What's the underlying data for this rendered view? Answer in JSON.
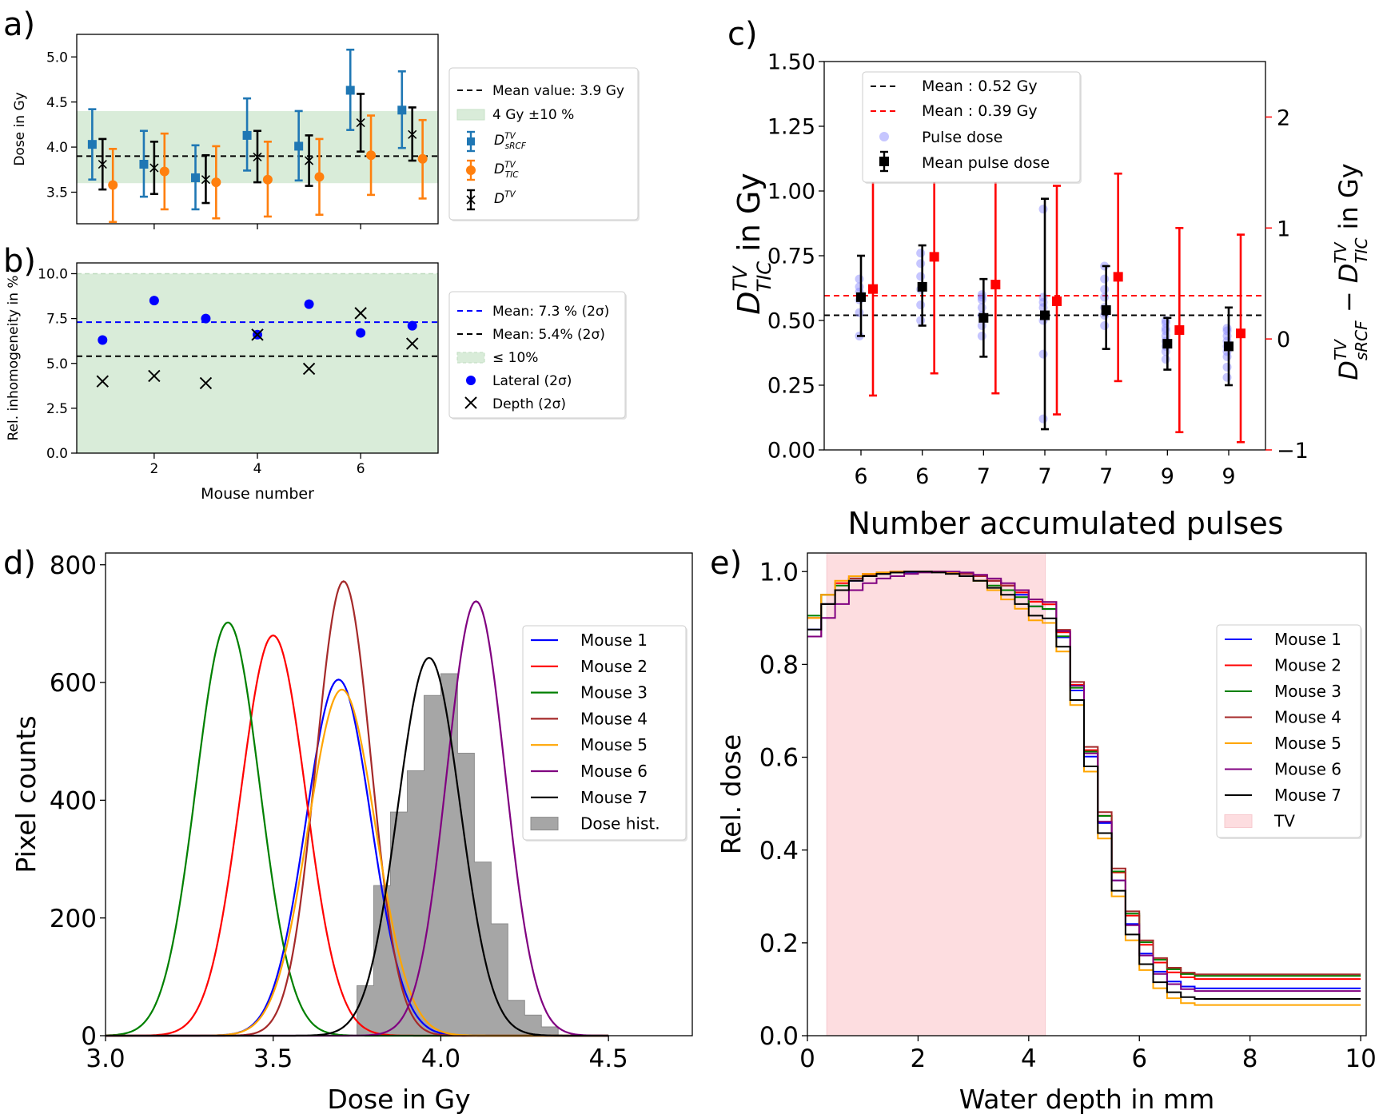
{
  "panels": {
    "a": "a)",
    "b": "b)",
    "c": "c)",
    "d": "d)",
    "e": "e)"
  },
  "colors": {
    "blue": "#1f77b4",
    "orange": "#ff7f0e",
    "green_band": "#d9ecd9",
    "red": "#ff0000",
    "pink_band": "#fddde0",
    "hist": "#a6a6a6",
    "mouse1": "#0000ff",
    "mouse2": "#ff0000",
    "mouse3": "#008000",
    "mouse4": "#a52a2a",
    "mouse5": "#ffa500",
    "mouse6": "#800080",
    "mouse7": "#000000"
  },
  "chart_data": [
    {
      "id": "a",
      "type": "scatter",
      "ylabel": "Dose in Gy",
      "xlim": [
        0.5,
        7.5
      ],
      "ylim": [
        3.15,
        5.25
      ],
      "yticks": [
        3.5,
        4.0,
        4.5,
        5.0
      ],
      "xticks": [
        2,
        4,
        6
      ],
      "band": {
        "from": 3.6,
        "to": 4.4
      },
      "mean_line": 3.9,
      "legend": [
        "Mean value: 3.9 Gy",
        "4 Gy ±10 %"
      ],
      "series": [
        {
          "label_main": "D",
          "sup": "TV",
          "sub": "sRCF",
          "x": [
            1,
            2,
            3,
            4,
            5,
            6,
            7
          ],
          "offset": -0.2,
          "y": [
            4.03,
            3.81,
            3.66,
            4.13,
            4.01,
            4.63,
            4.41
          ],
          "lo": [
            3.64,
            3.45,
            3.31,
            3.74,
            3.63,
            4.19,
            3.99
          ],
          "hi": [
            4.42,
            4.18,
            4.02,
            4.54,
            4.4,
            5.08,
            4.84
          ]
        },
        {
          "label_main": "D",
          "sup": "TV",
          "sub": "TIC",
          "x": [
            1,
            2,
            3,
            4,
            5,
            6,
            7
          ],
          "offset": 0.2,
          "y": [
            3.58,
            3.73,
            3.61,
            3.64,
            3.67,
            3.91,
            3.87
          ],
          "lo": [
            3.17,
            3.31,
            3.21,
            3.23,
            3.25,
            3.47,
            3.43
          ],
          "hi": [
            3.98,
            4.15,
            4.01,
            4.06,
            4.09,
            4.35,
            4.3
          ]
        },
        {
          "label_main": "D",
          "sup": "TV",
          "sub": "",
          "x": [
            1,
            2,
            3,
            4,
            5,
            6,
            7
          ],
          "offset": 0,
          "y": [
            3.81,
            3.77,
            3.64,
            3.89,
            3.85,
            4.27,
            4.14
          ],
          "lo": [
            3.53,
            3.48,
            3.38,
            3.61,
            3.57,
            3.95,
            3.85
          ],
          "hi": [
            4.09,
            4.06,
            3.91,
            4.18,
            4.13,
            4.59,
            4.44
          ]
        }
      ]
    },
    {
      "id": "b",
      "type": "scatter",
      "xlabel": "Mouse number",
      "ylabel": "Rel. inhomogeneity in %",
      "xlim": [
        0.5,
        7.5
      ],
      "ylim": [
        0,
        10.6
      ],
      "yticks": [
        0.0,
        2.5,
        5.0,
        7.5,
        10.0
      ],
      "xticks": [
        2,
        4,
        6
      ],
      "band": {
        "from": 0,
        "to": 10
      },
      "mean_lateral": 7.3,
      "mean_depth": 5.4,
      "legend": [
        "Mean: 7.3 % (2σ)",
        "Mean: 5.4% (2σ)",
        "≤ 10%",
        "Lateral (2σ)",
        "Depth (2σ)"
      ],
      "series": [
        {
          "name": "Lateral (2σ)",
          "x": [
            1,
            2,
            3,
            4,
            5,
            6,
            7
          ],
          "y": [
            6.3,
            8.5,
            7.5,
            6.6,
            8.3,
            6.7,
            7.1
          ]
        },
        {
          "name": "Depth (2σ)",
          "x": [
            1,
            2,
            3,
            4,
            5,
            6,
            7
          ],
          "y": [
            4.0,
            4.3,
            3.9,
            6.6,
            4.7,
            7.8,
            6.1
          ]
        }
      ]
    },
    {
      "id": "c",
      "type": "scatter",
      "xlabel": "Number accumulated pulses",
      "ylabel_left": {
        "main": "D",
        "sup": "TV",
        "sub": "TIC",
        "rest": " in Gy"
      },
      "ylabel_right": {
        "a_main": "D",
        "a_sup": "TV",
        "a_sub": "sRCF",
        "mid": " − ",
        "b_main": "D",
        "b_sup": "TV",
        "b_sub": "TIC",
        "rest": " in Gy"
      },
      "categories": [
        "6",
        "6",
        "7",
        "7",
        "7",
        "9",
        "9"
      ],
      "ylim_left": [
        0,
        1.5
      ],
      "yticks_left": [
        0.0,
        0.25,
        0.5,
        0.75,
        1.0,
        1.25,
        1.5
      ],
      "ylim_right": [
        -1,
        2.5
      ],
      "yticks_right": [
        -1,
        0,
        1,
        2
      ],
      "mean_black": 0.52,
      "mean_red": 0.39,
      "legend": [
        "Mean : 0.52 Gy",
        "Mean : 0.39 Gy",
        "Pulse dose",
        "Mean pulse dose"
      ],
      "mean_pulse": {
        "y": [
          0.59,
          0.63,
          0.51,
          0.52,
          0.54,
          0.41,
          0.4
        ],
        "lo": [
          0.44,
          0.48,
          0.36,
          0.08,
          0.39,
          0.31,
          0.25
        ],
        "hi": [
          0.75,
          0.79,
          0.66,
          0.97,
          0.71,
          0.51,
          0.55
        ]
      },
      "pulse_dose": [
        [
          0.44,
          0.53,
          0.58,
          0.61,
          0.63,
          0.66
        ],
        [
          0.5,
          0.56,
          0.62,
          0.67,
          0.72,
          0.76
        ],
        [
          0.44,
          0.48,
          0.52,
          0.55,
          0.58,
          0.59,
          0.6
        ],
        [
          0.12,
          0.37,
          0.5,
          0.55,
          0.57,
          0.59,
          0.93
        ],
        [
          0.48,
          0.52,
          0.55,
          0.59,
          0.62,
          0.66,
          0.71
        ],
        [
          0.35,
          0.38,
          0.4,
          0.42,
          0.44,
          0.46,
          0.47,
          0.49,
          0.5
        ],
        [
          0.28,
          0.32,
          0.36,
          0.38,
          0.4,
          0.42,
          0.44,
          0.46,
          0.47
        ]
      ],
      "difference": {
        "y": [
          0.45,
          0.74,
          0.49,
          0.34,
          0.56,
          0.08,
          0.05
        ],
        "lo": [
          -0.51,
          -0.31,
          -0.49,
          -0.68,
          -0.38,
          -0.84,
          -0.93
        ],
        "hi": [
          1.46,
          1.79,
          1.47,
          1.38,
          1.49,
          1.0,
          0.94
        ]
      }
    },
    {
      "id": "d",
      "type": "line",
      "xlabel": "Dose in Gy",
      "ylabel": "Pixel counts",
      "xlim": [
        3.0,
        4.75
      ],
      "ylim": [
        0,
        820
      ],
      "xticks": [
        3.0,
        3.5,
        4.0,
        4.5
      ],
      "yticks": [
        0,
        200,
        400,
        600,
        800
      ],
      "series": [
        {
          "name": "Mouse 1",
          "mu": 3.695,
          "sigma": 0.097,
          "amp": 605
        },
        {
          "name": "Mouse 2",
          "mu": 3.5,
          "sigma": 0.097,
          "amp": 680
        },
        {
          "name": "Mouse 3",
          "mu": 3.365,
          "sigma": 0.095,
          "amp": 702
        },
        {
          "name": "Mouse 4",
          "mu": 3.71,
          "sigma": 0.082,
          "amp": 772
        },
        {
          "name": "Mouse 5",
          "mu": 3.705,
          "sigma": 0.1,
          "amp": 588
        },
        {
          "name": "Mouse 6",
          "mu": 4.105,
          "sigma": 0.087,
          "amp": 738
        },
        {
          "name": "Mouse 7",
          "mu": 3.965,
          "sigma": 0.093,
          "amp": 642
        }
      ],
      "histogram": {
        "name": "Dose hist.",
        "edges": [
          3.75,
          3.8,
          3.85,
          3.9,
          3.95,
          4.0,
          4.05,
          4.1,
          4.15,
          4.2,
          4.25,
          4.3,
          4.35,
          4.4
        ],
        "counts": [
          85,
          255,
          380,
          450,
          578,
          615,
          480,
          295,
          190,
          60,
          35,
          15,
          0
        ]
      },
      "legend": [
        "Mouse 1",
        "Mouse 2",
        "Mouse 3",
        "Mouse 4",
        "Mouse 5",
        "Mouse 6",
        "Mouse 7",
        "Dose hist."
      ]
    },
    {
      "id": "e",
      "type": "line",
      "xlabel": "Water depth in mm",
      "ylabel": "Rel. dose",
      "xlim": [
        0,
        10.1
      ],
      "ylim": [
        0,
        1.04
      ],
      "xticks": [
        0,
        2,
        4,
        6,
        8,
        10
      ],
      "yticks": [
        0.0,
        0.2,
        0.4,
        0.6,
        0.8,
        1.0
      ],
      "tv_band": {
        "from": 0.35,
        "to": 4.3,
        "name": "TV"
      },
      "step_width": 0.25,
      "series": [
        {
          "name": "Mouse 1",
          "start": [
            0.875,
            0.93,
            0.96,
            0.98,
            0.99,
            0.995,
            0.998,
            0.998,
            1.0,
            1.0,
            0.998,
            0.995,
            0.99,
            0.98,
            0.97,
            0.95,
            0.925
          ],
          "tail_a": 0.098,
          "tail_b": 0.22
        },
        {
          "name": "Mouse 2",
          "start": [
            0.9,
            0.95,
            0.975,
            0.99,
            0.995,
            0.998,
            1.0,
            1.0,
            1.0,
            1.0,
            0.998,
            0.995,
            0.99,
            0.98,
            0.97,
            0.955,
            0.935
          ],
          "tail_a": 0.118,
          "tail_b": 0.205
        },
        {
          "name": "Mouse 3",
          "start": [
            0.905,
            0.95,
            0.97,
            0.985,
            0.99,
            0.995,
            0.998,
            1.0,
            1.0,
            1.0,
            0.998,
            0.99,
            0.98,
            0.97,
            0.96,
            0.945,
            0.925
          ],
          "tail_a": 0.125,
          "tail_b": 0.195
        },
        {
          "name": "Mouse 4",
          "start": [
            0.86,
            0.93,
            0.96,
            0.985,
            0.993,
            0.997,
            1.0,
            1.0,
            1.0,
            1.0,
            0.998,
            0.995,
            0.99,
            0.98,
            0.97,
            0.96,
            0.94
          ],
          "tail_a": 0.128,
          "tail_b": 0.19
        },
        {
          "name": "Mouse 5",
          "start": [
            0.9,
            0.95,
            0.98,
            0.99,
            0.995,
            0.998,
            1.0,
            1.0,
            1.0,
            1.0,
            0.997,
            0.99,
            0.98,
            0.96,
            0.94,
            0.92,
            0.895
          ],
          "tail_a": 0.062,
          "tail_b": 0.255
        },
        {
          "name": "Mouse 6",
          "start": [
            0.86,
            0.9,
            0.93,
            0.96,
            0.975,
            0.985,
            0.99,
            0.995,
            0.998,
            1.0,
            1.0,
            0.998,
            0.993,
            0.985,
            0.975,
            0.96,
            0.94
          ],
          "tail_a": 0.092,
          "tail_b": 0.225
        },
        {
          "name": "Mouse 7",
          "start": [
            0.875,
            0.93,
            0.96,
            0.98,
            0.99,
            0.995,
            0.998,
            1.0,
            1.0,
            0.998,
            0.995,
            0.99,
            0.98,
            0.965,
            0.95,
            0.93,
            0.905
          ],
          "tail_a": 0.075,
          "tail_b": 0.24
        }
      ],
      "legend": [
        "Mouse 1",
        "Mouse 2",
        "Mouse 3",
        "Mouse 4",
        "Mouse 5",
        "Mouse 6",
        "Mouse 7",
        "TV"
      ]
    }
  ]
}
